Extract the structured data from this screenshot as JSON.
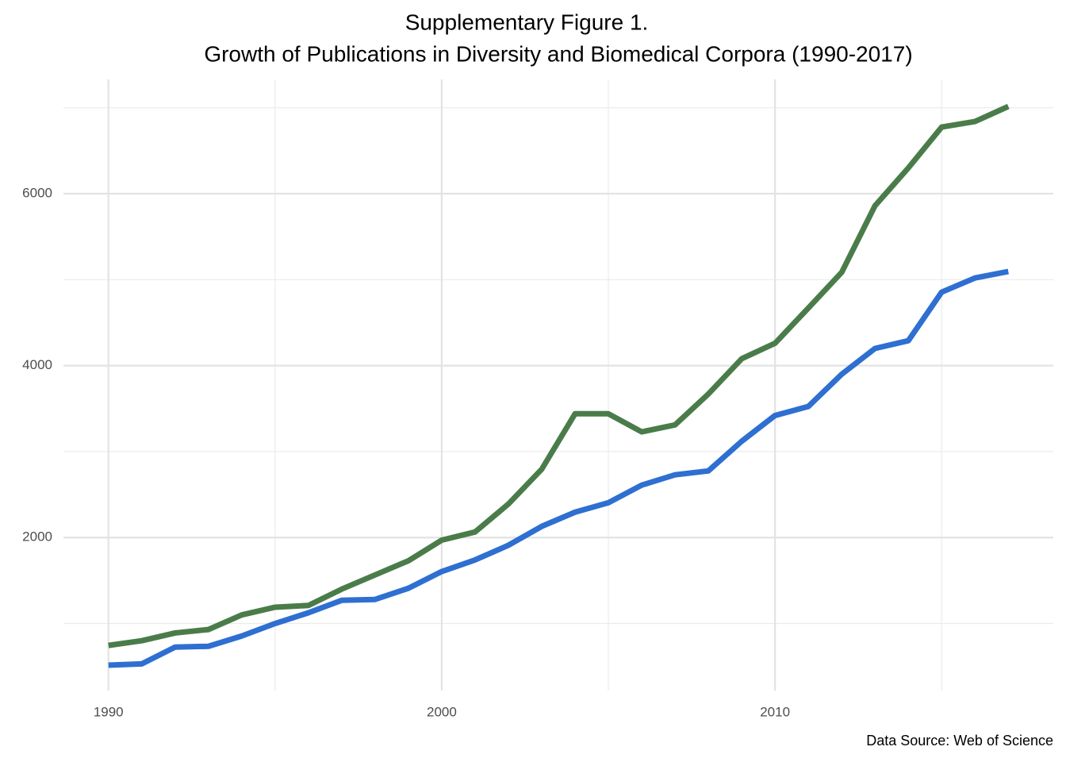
{
  "chart_data": {
    "type": "line",
    "title": "Supplementary Figure 1.",
    "subtitle": "Growth of Publications in Diversity and Biomedical Corpora (1990-2017)",
    "caption": "Data Source: Web of Science",
    "x": [
      1990,
      1991,
      1992,
      1993,
      1994,
      1995,
      1996,
      1997,
      1998,
      1999,
      2000,
      2001,
      2002,
      2003,
      2004,
      2005,
      2006,
      2007,
      2008,
      2009,
      2010,
      2011,
      2012,
      2013,
      2014,
      2015,
      2016,
      2017
    ],
    "series": [
      {
        "color": "#4a7c4a",
        "values": [
          745,
          800,
          890,
          930,
          1100,
          1190,
          1210,
          1400,
          1565,
          1730,
          1970,
          2065,
          2390,
          2795,
          3440,
          3440,
          3230,
          3310,
          3670,
          4080,
          4260,
          4670,
          5085,
          5860,
          6300,
          6775,
          6840,
          7015
        ]
      },
      {
        "color": "#2e6fd1",
        "values": [
          515,
          530,
          725,
          735,
          855,
          1000,
          1125,
          1270,
          1280,
          1410,
          1605,
          1740,
          1910,
          2130,
          2295,
          2405,
          2610,
          2730,
          2775,
          3120,
          3420,
          3525,
          3900,
          4200,
          4290,
          4855,
          5020,
          5095
        ]
      }
    ],
    "xlim": [
      1988.65,
      2018.35
    ],
    "xticks": [
      1990,
      2000,
      2010
    ],
    "xminor": [
      1995,
      2005,
      2015
    ],
    "ylim": [
      220,
      7330
    ],
    "yticks": [
      2000,
      4000,
      6000
    ],
    "yminor": [
      1000,
      3000,
      5000,
      7000
    ],
    "grid": true
  }
}
